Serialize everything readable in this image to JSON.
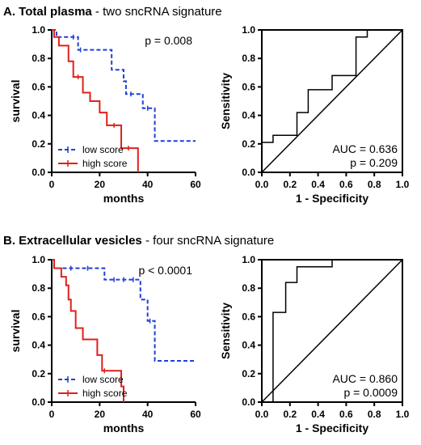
{
  "sections": [
    {
      "title_bold": "A. Total plasma",
      "title_rest": " - two sncRNA signature"
    },
    {
      "title_bold": "B. Extracellular  vesicles",
      "title_rest": " - four sncRNA signature"
    }
  ],
  "chart_data": [
    {
      "id": "A-survival",
      "type": "line",
      "subtype": "kaplan-meier",
      "xlabel": "months",
      "ylabel": "survival",
      "xlim": [
        0,
        60
      ],
      "ylim": [
        0,
        1.0
      ],
      "xticks": [
        "0",
        "20",
        "40",
        "60"
      ],
      "yticks": [
        "0.0",
        "0.2",
        "0.4",
        "0.6",
        "0.8",
        "1.0"
      ],
      "annotation": "p = 0.008",
      "legend": "bottom-left",
      "series": [
        {
          "name": "low score",
          "color": "#1f3fd6",
          "style": "dashed",
          "steps": [
            [
              0,
              1.0
            ],
            [
              2,
              0.95
            ],
            [
              11,
              0.86
            ],
            [
              25,
              0.72
            ],
            [
              30,
              0.64
            ],
            [
              31,
              0.55
            ],
            [
              38,
              0.45
            ],
            [
              43,
              0.22
            ],
            [
              60,
              0.22
            ]
          ],
          "censored": [
            [
              9,
              0.95
            ],
            [
              12,
              0.86
            ],
            [
              33,
              0.55
            ],
            [
              40,
              0.45
            ]
          ]
        },
        {
          "name": "high score",
          "color": "#e0201b",
          "style": "solid",
          "steps": [
            [
              0,
              1.0
            ],
            [
              1,
              0.95
            ],
            [
              3,
              0.89
            ],
            [
              7,
              0.78
            ],
            [
              9,
              0.67
            ],
            [
              13,
              0.56
            ],
            [
              16,
              0.5
            ],
            [
              20,
              0.42
            ],
            [
              23,
              0.33
            ],
            [
              29,
              0.17
            ],
            [
              36,
              0.0
            ]
          ],
          "censored": [
            [
              11,
              0.67
            ],
            [
              26,
              0.33
            ],
            [
              32,
              0.17
            ]
          ]
        }
      ]
    },
    {
      "id": "A-roc",
      "type": "line",
      "subtype": "roc",
      "xlabel": "1 - Specificity",
      "ylabel": "Sensitivity",
      "xlim": [
        0,
        1.0
      ],
      "ylim": [
        0,
        1.0
      ],
      "xticks": [
        "0.0",
        "0.2",
        "0.4",
        "0.6",
        "0.8",
        "1.0"
      ],
      "yticks": [
        "0.0",
        "0.2",
        "0.4",
        "0.6",
        "0.8",
        "1.0"
      ],
      "annotation_auc": "AUC = 0.636",
      "annotation_p": "p = 0.209",
      "series": [
        {
          "color": "#000000",
          "points": [
            [
              0,
              0
            ],
            [
              0,
              0.21
            ],
            [
              0.08,
              0.21
            ],
            [
              0.08,
              0.26
            ],
            [
              0.25,
              0.26
            ],
            [
              0.25,
              0.42
            ],
            [
              0.33,
              0.42
            ],
            [
              0.33,
              0.58
            ],
            [
              0.5,
              0.58
            ],
            [
              0.5,
              0.68
            ],
            [
              0.67,
              0.68
            ],
            [
              0.67,
              0.95
            ],
            [
              0.75,
              0.95
            ],
            [
              0.75,
              1.0
            ],
            [
              1.0,
              1.0
            ]
          ]
        }
      ]
    },
    {
      "id": "B-survival",
      "type": "line",
      "subtype": "kaplan-meier",
      "xlabel": "months",
      "ylabel": "survival",
      "xlim": [
        0,
        60
      ],
      "ylim": [
        0,
        1.0
      ],
      "xticks": [
        "0",
        "20",
        "40",
        "60"
      ],
      "yticks": [
        "0.0",
        "0.2",
        "0.4",
        "0.6",
        "0.8",
        "1.0"
      ],
      "annotation": "p < 0.0001",
      "legend": "bottom-left",
      "series": [
        {
          "name": "low score",
          "color": "#1f3fd6",
          "style": "dashed",
          "steps": [
            [
              0,
              1.0
            ],
            [
              1,
              0.94
            ],
            [
              22,
              0.86
            ],
            [
              37,
              0.72
            ],
            [
              40,
              0.57
            ],
            [
              43,
              0.29
            ],
            [
              60,
              0.29
            ]
          ],
          "censored": [
            [
              8,
              0.94
            ],
            [
              15,
              0.94
            ],
            [
              26,
              0.86
            ],
            [
              30,
              0.86
            ],
            [
              34,
              0.86
            ],
            [
              41,
              0.57
            ]
          ]
        },
        {
          "name": "high score",
          "color": "#e0201b",
          "style": "solid",
          "steps": [
            [
              0,
              1.0
            ],
            [
              1,
              0.94
            ],
            [
              4,
              0.88
            ],
            [
              6,
              0.82
            ],
            [
              7,
              0.72
            ],
            [
              8,
              0.64
            ],
            [
              10,
              0.52
            ],
            [
              13,
              0.44
            ],
            [
              19,
              0.33
            ],
            [
              21,
              0.22
            ],
            [
              29,
              0.11
            ],
            [
              30,
              0.0
            ]
          ],
          "censored": [
            [
              22,
              0.22
            ]
          ]
        }
      ]
    },
    {
      "id": "B-roc",
      "type": "line",
      "subtype": "roc",
      "xlabel": "1 - Specificity",
      "ylabel": "Sensitivity",
      "xlim": [
        0,
        1.0
      ],
      "ylim": [
        0,
        1.0
      ],
      "xticks": [
        "0.0",
        "0.2",
        "0.4",
        "0.6",
        "0.8",
        "1.0"
      ],
      "yticks": [
        "0.0",
        "0.2",
        "0.4",
        "0.6",
        "0.8",
        "1.0"
      ],
      "annotation_auc": "AUC = 0.860",
      "annotation_p": "p = 0.0009",
      "series": [
        {
          "color": "#000000",
          "points": [
            [
              0,
              0
            ],
            [
              0.08,
              0
            ],
            [
              0.08,
              0.63
            ],
            [
              0.17,
              0.63
            ],
            [
              0.17,
              0.84
            ],
            [
              0.25,
              0.84
            ],
            [
              0.25,
              0.95
            ],
            [
              0.5,
              0.95
            ],
            [
              0.5,
              1.0
            ],
            [
              1.0,
              1.0
            ]
          ]
        }
      ]
    }
  ]
}
